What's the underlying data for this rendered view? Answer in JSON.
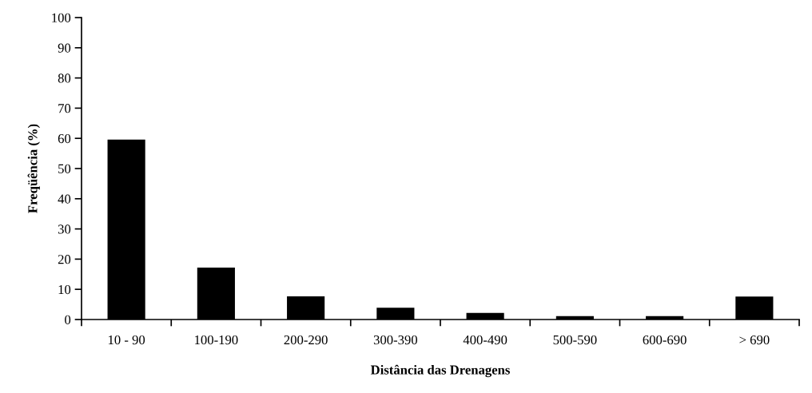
{
  "chart_data": {
    "type": "bar",
    "xlabel": "Distância das Drenagens",
    "ylabel": "Freqüência (%)",
    "categories": [
      "10 - 90",
      "100-190",
      "200-290",
      "300-390",
      "400-490",
      "500-590",
      "600-690",
      "> 690"
    ],
    "values": [
      59.6,
      17.2,
      7.7,
      3.9,
      2.2,
      1.1,
      1.1,
      7.6
    ],
    "color": "#000000",
    "ylim": [
      0,
      100
    ],
    "yticks": [
      0,
      10,
      20,
      30,
      40,
      50,
      60,
      70,
      80,
      90,
      100
    ],
    "grid": false
  }
}
